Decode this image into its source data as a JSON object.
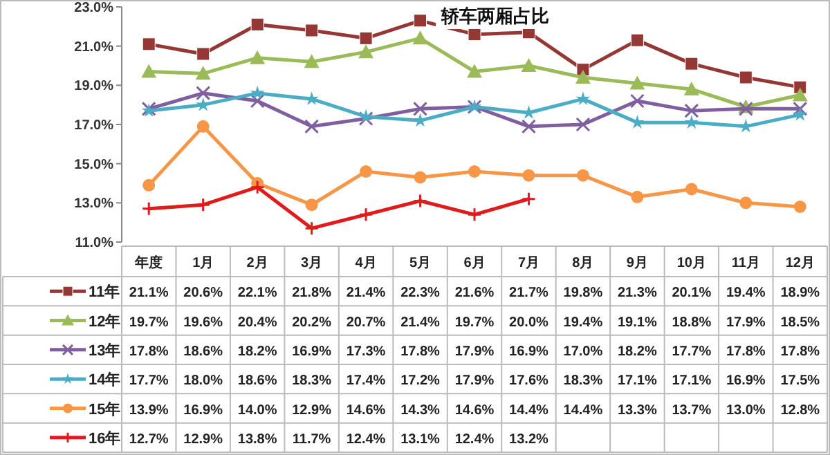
{
  "chart_data": {
    "type": "line",
    "title": "轿车两厢占比",
    "categories": [
      "年度",
      "1月",
      "2月",
      "3月",
      "4月",
      "5月",
      "6月",
      "7月",
      "8月",
      "9月",
      "10月",
      "11月",
      "12月"
    ],
    "ylim": [
      11,
      23
    ],
    "yticks": [
      {
        "value": 11,
        "label": "11.0%"
      },
      {
        "value": 13,
        "label": "13.0%"
      },
      {
        "value": 15,
        "label": "15.0%"
      },
      {
        "value": 17,
        "label": "17.0%"
      },
      {
        "value": 19,
        "label": "19.0%"
      },
      {
        "value": 21,
        "label": "21.0%"
      },
      {
        "value": 23,
        "label": "23.0%"
      }
    ],
    "legend": "bottom",
    "line_style": "solid",
    "series": [
      {
        "name": "11年",
        "color": "#953735",
        "marker": "square",
        "values": [
          21.1,
          20.6,
          22.1,
          21.8,
          21.4,
          22.3,
          21.6,
          21.7,
          19.8,
          21.3,
          20.1,
          19.4,
          18.9
        ],
        "value_labels": [
          "21.1%",
          "20.6%",
          "22.1%",
          "21.8%",
          "21.4%",
          "22.3%",
          "21.6%",
          "21.7%",
          "19.8%",
          "21.3%",
          "20.1%",
          "19.4%",
          "18.9%"
        ]
      },
      {
        "name": "12年",
        "color": "#9bbb59",
        "marker": "triangle",
        "values": [
          19.7,
          19.6,
          20.4,
          20.2,
          20.7,
          21.4,
          19.7,
          20.0,
          19.4,
          19.1,
          18.8,
          17.9,
          18.5
        ],
        "value_labels": [
          "19.7%",
          "19.6%",
          "20.4%",
          "20.2%",
          "20.7%",
          "21.4%",
          "19.7%",
          "20.0%",
          "19.4%",
          "19.1%",
          "18.8%",
          "17.9%",
          "18.5%"
        ]
      },
      {
        "name": "13年",
        "color": "#7f5fa0",
        "marker": "cross",
        "values": [
          17.8,
          18.6,
          18.2,
          16.9,
          17.3,
          17.8,
          17.9,
          16.9,
          17.0,
          18.2,
          17.7,
          17.8,
          17.8
        ],
        "value_labels": [
          "17.8%",
          "18.6%",
          "18.2%",
          "16.9%",
          "17.3%",
          "17.8%",
          "17.9%",
          "16.9%",
          "17.0%",
          "18.2%",
          "17.7%",
          "17.8%",
          "17.8%"
        ]
      },
      {
        "name": "14年",
        "color": "#4bacc6",
        "marker": "star",
        "values": [
          17.7,
          18.0,
          18.6,
          18.3,
          17.4,
          17.2,
          17.9,
          17.6,
          18.3,
          17.1,
          17.1,
          16.9,
          17.5
        ],
        "value_labels": [
          "17.7%",
          "18.0%",
          "18.6%",
          "18.3%",
          "17.4%",
          "17.2%",
          "17.9%",
          "17.6%",
          "18.3%",
          "17.1%",
          "17.1%",
          "16.9%",
          "17.5%"
        ]
      },
      {
        "name": "15年",
        "color": "#f79646",
        "marker": "circle",
        "values": [
          13.9,
          16.9,
          14.0,
          12.9,
          14.6,
          14.3,
          14.6,
          14.4,
          14.4,
          13.3,
          13.7,
          13.0,
          12.8
        ],
        "value_labels": [
          "13.9%",
          "16.9%",
          "14.0%",
          "12.9%",
          "14.6%",
          "14.3%",
          "14.6%",
          "14.4%",
          "14.4%",
          "13.3%",
          "13.7%",
          "13.0%",
          "12.8%"
        ]
      },
      {
        "name": "16年",
        "color": "#e01b1b",
        "marker": "plus",
        "values": [
          12.7,
          12.9,
          13.8,
          11.7,
          12.4,
          13.1,
          12.4,
          13.2,
          null,
          null,
          null,
          null,
          null
        ],
        "value_labels": [
          "12.7%",
          "12.9%",
          "13.8%",
          "11.7%",
          "12.4%",
          "13.1%",
          "12.4%",
          "13.2%",
          null,
          null,
          null,
          null,
          null
        ]
      }
    ]
  }
}
